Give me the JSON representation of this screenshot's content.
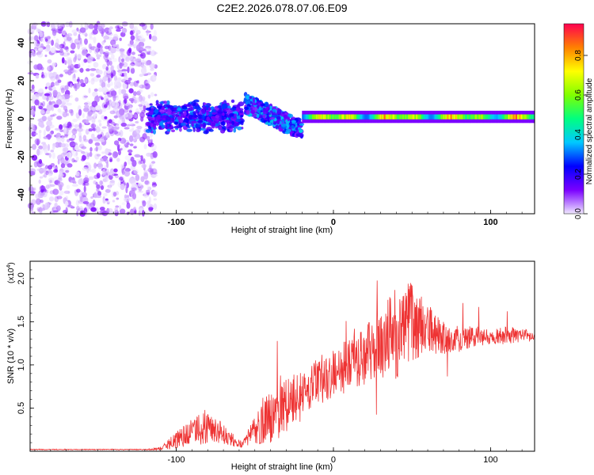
{
  "title": "C2E2.2026.078.07.06.E09",
  "chart_data": [
    {
      "type": "heatmap",
      "xlabel": "Height of straight line (km)",
      "ylabel": "Frequency (Hz)",
      "xlim": [
        -193,
        128
      ],
      "ylim": [
        -50,
        50
      ],
      "xticks": [
        -100,
        0,
        100
      ],
      "yticks": [
        -40,
        -20,
        0,
        20,
        40
      ],
      "colorbar": {
        "label": "Normalized spectral amplitude",
        "range": [
          0,
          0.96
        ],
        "ticks": [
          0.0,
          0.2,
          0.4,
          0.6,
          0.8
        ],
        "tick_labels": [
          "0.0",
          "0.2",
          "0.4",
          "0.6",
          "0.8"
        ],
        "colormap": [
          "#f0e8ff",
          "#7a00ff",
          "#0000ff",
          "#00c8ff",
          "#00ff80",
          "#80ff00",
          "#ffff00",
          "#ff8000",
          "#ff0050"
        ]
      },
      "regions": [
        {
          "name": "noise",
          "x_range": [
            -193,
            -113
          ],
          "freq_range": [
            -50,
            50
          ],
          "amplitude": [
            0.0,
            0.12
          ]
        },
        {
          "name": "onset band",
          "x_range": [
            -118,
            -58
          ],
          "freq_range": [
            -8,
            10
          ],
          "amplitude": [
            0.1,
            0.35
          ]
        },
        {
          "name": "dispersive arc",
          "x_range": [
            -56,
            -20
          ],
          "freq_range": [
            -15,
            12
          ],
          "amplitude": [
            0.1,
            0.4
          ]
        },
        {
          "name": "tone",
          "x_range": [
            -20,
            128
          ],
          "freq_center": 1,
          "amplitude": [
            0.3,
            0.96
          ]
        }
      ]
    },
    {
      "type": "line",
      "xlabel": "Height of straight line (km)",
      "ylabel": "SNR (10 * v/v)",
      "yscale_note": "(x10",
      "yscale_exp": "4",
      "xlim": [
        -193,
        128
      ],
      "ylim": [
        0,
        2.2
      ],
      "xticks": [
        -100,
        0,
        100
      ],
      "yticks": [
        0.5,
        1.0,
        1.5,
        2.0
      ],
      "ytick_labels": [
        "0.5",
        "1.0",
        "1.5",
        "2.0"
      ],
      "color": "#ee3333",
      "envelope": {
        "x": [
          -193,
          -120,
          -110,
          -100,
          -90,
          -82,
          -75,
          -68,
          -60,
          -52,
          -45,
          -38,
          -30,
          -22,
          -15,
          -8,
          0,
          10,
          20,
          30,
          40,
          50,
          60,
          70,
          80,
          90,
          100,
          110,
          120,
          128
        ],
        "mean": [
          0.02,
          0.02,
          0.03,
          0.13,
          0.22,
          0.3,
          0.25,
          0.18,
          0.08,
          0.2,
          0.35,
          0.42,
          0.55,
          0.62,
          0.72,
          0.85,
          0.9,
          1.0,
          1.12,
          1.25,
          1.38,
          1.5,
          1.4,
          1.32,
          1.3,
          1.33,
          1.32,
          1.34,
          1.34,
          1.32
        ],
        "spread": [
          0.005,
          0.005,
          0.02,
          0.1,
          0.15,
          0.22,
          0.15,
          0.1,
          0.05,
          0.12,
          0.3,
          0.3,
          0.35,
          0.3,
          0.25,
          0.3,
          0.3,
          0.3,
          0.35,
          0.4,
          0.55,
          0.45,
          0.3,
          0.2,
          0.15,
          0.12,
          0.1,
          0.1,
          0.08,
          0.07
        ]
      },
      "samples": 1400
    }
  ]
}
